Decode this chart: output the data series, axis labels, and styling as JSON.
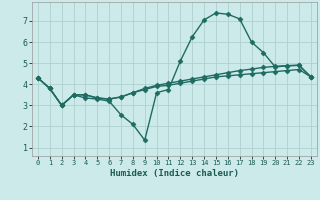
{
  "xlabel": "Humidex (Indice chaleur)",
  "bg_color": "#cdeaea",
  "grid_color": "#b0d0d0",
  "line_color": "#1e6b62",
  "x_ticks": [
    0,
    1,
    2,
    3,
    4,
    5,
    6,
    7,
    8,
    9,
    10,
    11,
    12,
    13,
    14,
    15,
    16,
    17,
    18,
    19,
    20,
    21,
    22,
    23
  ],
  "y_ticks": [
    1,
    2,
    3,
    4,
    5,
    6,
    7
  ],
  "ylim": [
    0.6,
    7.9
  ],
  "xlim": [
    -0.5,
    23.5
  ],
  "series1_x": [
    0,
    1,
    2,
    3,
    4,
    5,
    6,
    7,
    8,
    9,
    10,
    11,
    12,
    13,
    14,
    15,
    16,
    17,
    18,
    19,
    20,
    21,
    22,
    23
  ],
  "series1_y": [
    4.3,
    3.8,
    3.0,
    3.5,
    3.5,
    3.35,
    3.3,
    3.4,
    3.6,
    3.75,
    3.9,
    3.95,
    4.05,
    4.15,
    4.25,
    4.35,
    4.4,
    4.45,
    4.5,
    4.55,
    4.6,
    4.65,
    4.7,
    4.35
  ],
  "series2_x": [
    0,
    1,
    2,
    3,
    4,
    5,
    6,
    7,
    8,
    9,
    10,
    11,
    12,
    13,
    14,
    15,
    16,
    17,
    18,
    19,
    20,
    21,
    22,
    23
  ],
  "series2_y": [
    4.3,
    3.8,
    3.0,
    3.5,
    3.5,
    3.35,
    3.3,
    3.4,
    3.6,
    3.8,
    3.95,
    4.05,
    4.15,
    4.25,
    4.35,
    4.45,
    4.55,
    4.65,
    4.72,
    4.8,
    4.85,
    4.88,
    4.9,
    4.35
  ],
  "series3_x": [
    0,
    1,
    2,
    3,
    4,
    5,
    6,
    7,
    8,
    9,
    10,
    11,
    12,
    13,
    14,
    15,
    16,
    17,
    18,
    19,
    20,
    21,
    22,
    23
  ],
  "series3_y": [
    4.3,
    3.8,
    3.0,
    3.5,
    3.35,
    3.3,
    3.2,
    2.55,
    2.1,
    1.35,
    3.6,
    3.75,
    5.1,
    6.25,
    7.05,
    7.38,
    7.32,
    7.1,
    6.0,
    5.5,
    4.82,
    4.88,
    4.9,
    4.35
  ],
  "marker": "D",
  "markersize": 2.5,
  "linewidth": 1.0
}
